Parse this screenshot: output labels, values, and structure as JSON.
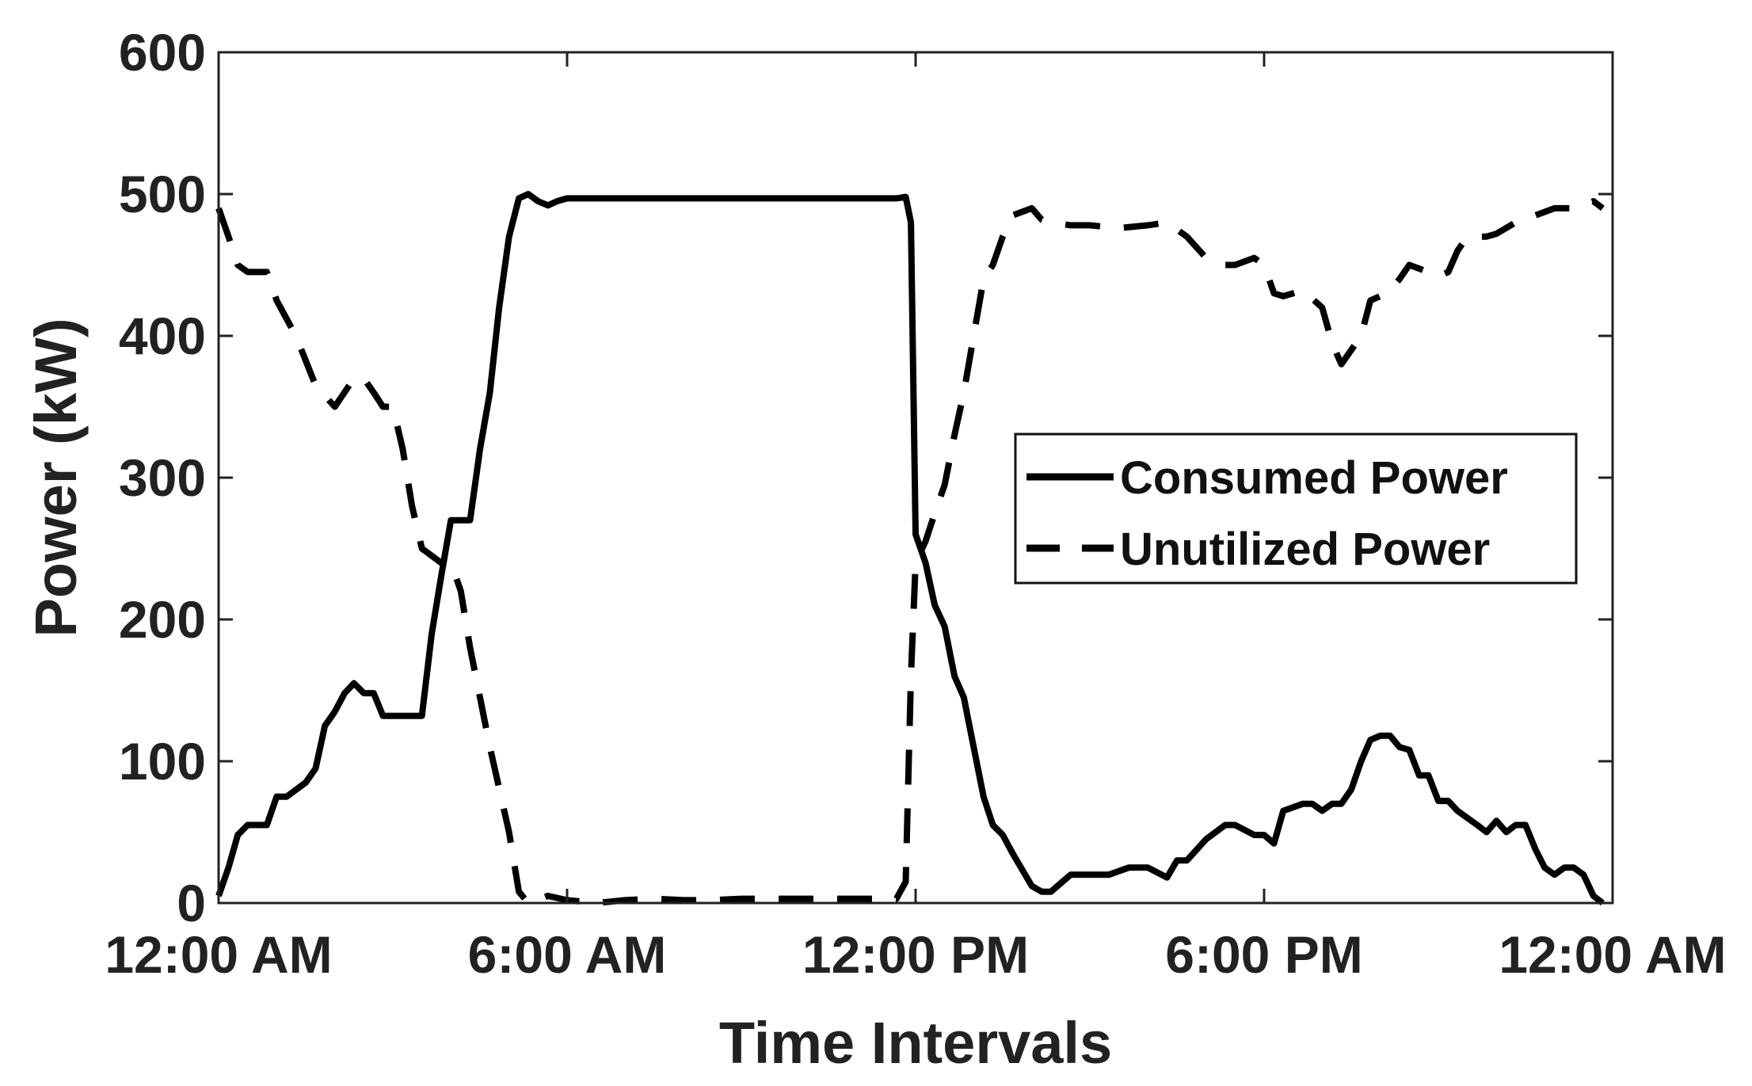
{
  "chart_data": {
    "type": "line",
    "title": "",
    "xlabel": "Time Intervals",
    "ylabel": "Power (kW)",
    "xlim": [
      0,
      24
    ],
    "ylim": [
      0,
      600
    ],
    "x_ticks": [
      {
        "value": 0,
        "label": "12:00 AM"
      },
      {
        "value": 6,
        "label": "6:00 AM"
      },
      {
        "value": 12,
        "label": "12:00 PM"
      },
      {
        "value": 18,
        "label": "6:00 PM"
      },
      {
        "value": 24,
        "label": "12:00 AM"
      }
    ],
    "y_ticks": [
      0,
      100,
      200,
      300,
      400,
      500,
      600
    ],
    "grid": false,
    "legend_position": "center-right",
    "series": [
      {
        "name": "Consumed Power",
        "style": "solid",
        "color": "#000000",
        "x": [
          0,
          0.17,
          0.33,
          0.5,
          0.83,
          1.0,
          1.17,
          1.5,
          1.67,
          1.83,
          2.0,
          2.17,
          2.33,
          2.5,
          2.67,
          2.83,
          3.0,
          3.17,
          3.5,
          3.67,
          3.83,
          4.0,
          4.17,
          4.33,
          4.5,
          4.67,
          4.83,
          5.0,
          5.17,
          5.33,
          5.5,
          5.67,
          5.83,
          6.0,
          6.5,
          7.0,
          7.5,
          8.0,
          8.5,
          9.0,
          9.5,
          10.0,
          10.5,
          11.0,
          11.5,
          11.67,
          11.83,
          11.92,
          12.0,
          12.17,
          12.33,
          12.5,
          12.67,
          12.83,
          13.0,
          13.17,
          13.33,
          13.5,
          13.67,
          14.0,
          14.17,
          14.33,
          14.67,
          15.0,
          15.33,
          15.67,
          16.0,
          16.33,
          16.5,
          16.67,
          17.0,
          17.33,
          17.5,
          17.83,
          18.0,
          18.17,
          18.33,
          18.67,
          18.83,
          19.0,
          19.17,
          19.33,
          19.5,
          19.67,
          19.83,
          20.0,
          20.17,
          20.33,
          20.5,
          20.67,
          20.83,
          21.0,
          21.17,
          21.33,
          21.5,
          21.67,
          21.83,
          22.0,
          22.17,
          22.33,
          22.5,
          22.67,
          22.83,
          23.0,
          23.17,
          23.33,
          23.5,
          23.67,
          23.83
        ],
        "values": [
          5,
          25,
          48,
          55,
          55,
          75,
          75,
          85,
          95,
          125,
          135,
          148,
          155,
          148,
          148,
          132,
          132,
          132,
          132,
          190,
          230,
          270,
          270,
          270,
          320,
          360,
          420,
          470,
          497,
          500,
          495,
          492,
          495,
          497,
          497,
          497,
          497,
          497,
          497,
          497,
          497,
          497,
          497,
          497,
          497,
          497,
          498,
          480,
          260,
          240,
          210,
          195,
          160,
          145,
          110,
          75,
          55,
          48,
          35,
          12,
          8,
          8,
          20,
          20,
          20,
          25,
          25,
          18,
          30,
          30,
          45,
          55,
          55,
          48,
          48,
          42,
          65,
          70,
          70,
          65,
          70,
          70,
          80,
          100,
          115,
          118,
          118,
          110,
          108,
          90,
          90,
          72,
          72,
          65,
          60,
          55,
          50,
          58,
          50,
          55,
          55,
          38,
          25,
          20,
          25,
          25,
          20,
          5,
          0
        ]
      },
      {
        "name": "Unutilized Power",
        "style": "dashed",
        "color": "#000000",
        "x": [
          0,
          0.17,
          0.33,
          0.5,
          0.83,
          1.0,
          1.33,
          1.67,
          2.0,
          2.33,
          2.5,
          2.67,
          2.83,
          3.0,
          3.17,
          3.33,
          3.5,
          3.83,
          4.0,
          4.17,
          4.33,
          4.67,
          5.0,
          5.17,
          5.33,
          5.67,
          6.0,
          6.5,
          7.0,
          7.5,
          8.0,
          8.5,
          9.0,
          9.5,
          10.0,
          10.5,
          11.0,
          11.33,
          11.67,
          11.83,
          11.92,
          12.0,
          12.17,
          12.33,
          12.5,
          12.67,
          12.83,
          13.0,
          13.17,
          13.33,
          13.5,
          13.67,
          14.0,
          14.17,
          14.33,
          14.67,
          15.0,
          15.5,
          16.0,
          16.33,
          16.67,
          17.0,
          17.33,
          17.5,
          17.83,
          18.0,
          18.17,
          18.33,
          18.67,
          19.0,
          19.17,
          19.33,
          19.5,
          19.67,
          19.83,
          20.0,
          20.17,
          20.33,
          20.5,
          20.83,
          21.0,
          21.17,
          21.33,
          21.5,
          21.83,
          22.0,
          22.33,
          22.67,
          23.0,
          23.33,
          23.67,
          23.83
        ],
        "values": [
          490,
          470,
          450,
          445,
          445,
          425,
          400,
          365,
          350,
          370,
          370,
          360,
          350,
          350,
          320,
          280,
          250,
          240,
          240,
          220,
          180,
          110,
          50,
          8,
          0,
          5,
          2,
          0,
          2,
          3,
          2,
          2,
          3,
          3,
          3,
          3,
          3,
          3,
          3,
          15,
          160,
          240,
          255,
          275,
          295,
          330,
          360,
          400,
          440,
          450,
          470,
          485,
          490,
          482,
          480,
          478,
          478,
          476,
          478,
          480,
          470,
          455,
          450,
          450,
          455,
          450,
          430,
          428,
          432,
          420,
          395,
          380,
          390,
          400,
          425,
          428,
          432,
          440,
          450,
          445,
          442,
          445,
          460,
          470,
          470,
          472,
          480,
          485,
          490,
          490,
          495,
          490
        ]
      }
    ]
  }
}
